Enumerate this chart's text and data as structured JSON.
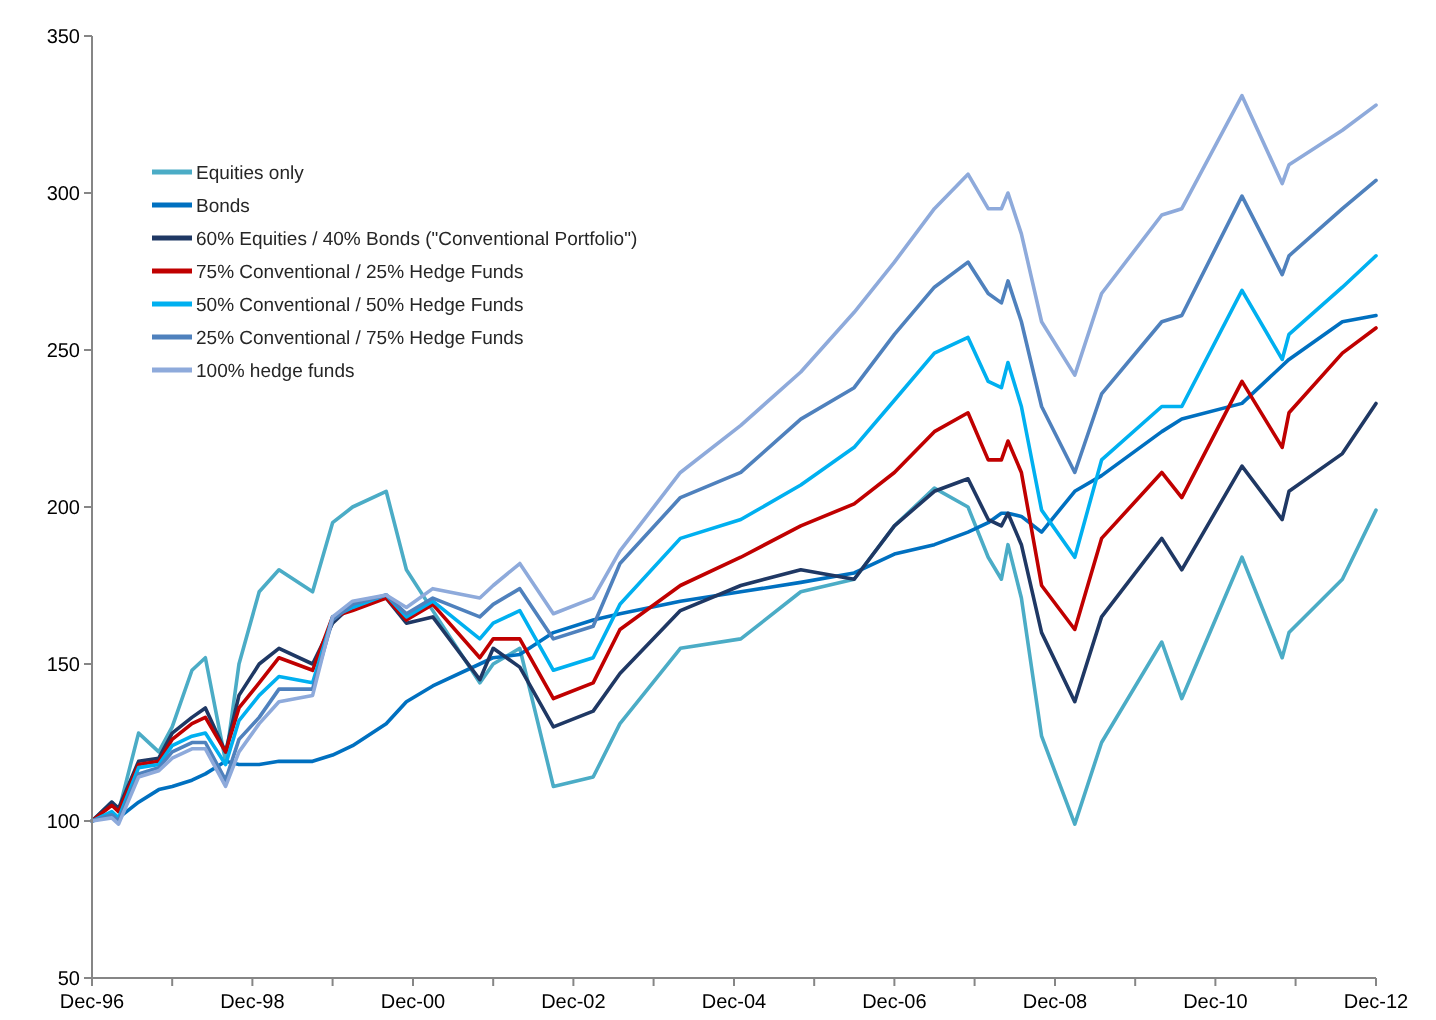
{
  "chart_data": {
    "type": "line",
    "x": [
      "1996-12",
      "1997-03",
      "1997-04",
      "1997-07",
      "1997-10",
      "1997-12",
      "1998-03",
      "1998-05",
      "1998-08",
      "1998-10",
      "1999-01",
      "1999-04",
      "1999-09",
      "1999-12",
      "2000-03",
      "2000-08",
      "2000-11",
      "2001-03",
      "2001-10",
      "2001-12",
      "2002-04",
      "2002-09",
      "2003-03",
      "2003-07",
      "2004-04",
      "2005-01",
      "2005-10",
      "2006-06",
      "2006-12",
      "2007-06",
      "2007-11",
      "2008-02",
      "2008-04",
      "2008-05",
      "2008-07",
      "2008-10",
      "2009-03",
      "2009-07",
      "2010-04",
      "2010-07",
      "2011-04",
      "2011-10",
      "2011-11",
      "2012-07",
      "2012-12"
    ],
    "series": [
      {
        "name": "Equities only",
        "color": "#4bacc6",
        "values": [
          100,
          106,
          103,
          128,
          122,
          130,
          148,
          152,
          119,
          150,
          173,
          180,
          173,
          195,
          200,
          205,
          180,
          167,
          144,
          150,
          155,
          111,
          114,
          131,
          155,
          158,
          173,
          177,
          194,
          206,
          200,
          184,
          177,
          188,
          171,
          127,
          99,
          125,
          157,
          139,
          184,
          152,
          160,
          177,
          199
        ]
      },
      {
        "name": "Bonds",
        "color": "#0070c0",
        "values": [
          100,
          102,
          101,
          106,
          110,
          111,
          113,
          115,
          119,
          118,
          118,
          119,
          119,
          121,
          124,
          131,
          138,
          143,
          150,
          152,
          153,
          160,
          164,
          166,
          170,
          173,
          176,
          179,
          185,
          188,
          192,
          195,
          198,
          198,
          197,
          192,
          205,
          210,
          224,
          228,
          233,
          245,
          247,
          259,
          261
        ]
      },
      {
        "name": "60% Equities / 40% Bonds (\"Conventional Portfolio\")",
        "color": "#1f3864",
        "values": [
          100,
          106,
          104,
          119,
          120,
          128,
          133,
          136,
          122,
          140,
          150,
          155,
          150,
          163,
          169,
          171,
          163,
          165,
          145,
          155,
          149,
          130,
          135,
          147,
          167,
          175,
          180,
          177,
          194,
          205,
          209,
          196,
          194,
          198,
          188,
          160,
          138,
          165,
          190,
          180,
          213,
          196,
          205,
          217,
          233
        ]
      },
      {
        "name": "75% Conventional / 25% Hedge Funds",
        "color": "#c00000",
        "values": [
          100,
          105,
          103,
          118,
          119,
          126,
          131,
          133,
          122,
          136,
          144,
          152,
          148,
          165,
          167,
          171,
          164,
          169,
          152,
          158,
          158,
          139,
          144,
          161,
          175,
          184,
          194,
          201,
          211,
          224,
          230,
          215,
          215,
          221,
          211,
          175,
          161,
          190,
          211,
          203,
          240,
          219,
          230,
          249,
          257
        ]
      },
      {
        "name": "50% Conventional / 50% Hedge Funds",
        "color": "#00b0f0",
        "values": [
          100,
          103,
          101,
          117,
          118,
          124,
          127,
          128,
          118,
          132,
          140,
          146,
          144,
          165,
          168,
          172,
          165,
          170,
          158,
          163,
          167,
          148,
          152,
          169,
          190,
          196,
          207,
          219,
          234,
          249,
          254,
          240,
          238,
          246,
          232,
          199,
          184,
          215,
          232,
          232,
          269,
          247,
          255,
          270,
          280
        ]
      },
      {
        "name": "25% Conventional / 75% Hedge Funds",
        "color": "#4f81bd",
        "values": [
          100,
          102,
          100,
          115,
          117,
          122,
          125,
          125,
          113,
          126,
          133,
          142,
          142,
          164,
          169,
          172,
          166,
          171,
          165,
          169,
          174,
          158,
          162,
          182,
          203,
          211,
          228,
          238,
          255,
          270,
          278,
          268,
          265,
          272,
          259,
          232,
          211,
          236,
          259,
          261,
          299,
          274,
          280,
          295,
          304
        ]
      },
      {
        "name": "100% hedge funds",
        "color": "#8eaadb",
        "values": [
          100,
          101,
          99,
          114,
          116,
          120,
          123,
          123,
          111,
          122,
          131,
          138,
          140,
          165,
          170,
          172,
          168,
          174,
          171,
          175,
          182,
          166,
          171,
          186,
          211,
          226,
          243,
          262,
          278,
          295,
          306,
          295,
          295,
          300,
          287,
          259,
          242,
          268,
          293,
          295,
          331,
          303,
          309,
          320,
          328
        ]
      }
    ],
    "xlim": [
      "1996-12",
      "2012-12"
    ],
    "xticks": [
      {
        "value": "1996-12",
        "label": "Dec-96"
      },
      {
        "value": "1997-12",
        "label": null
      },
      {
        "value": "1998-12",
        "label": "Dec-98"
      },
      {
        "value": "1999-12",
        "label": null
      },
      {
        "value": "2000-12",
        "label": "Dec-00"
      },
      {
        "value": "2001-12",
        "label": null
      },
      {
        "value": "2002-12",
        "label": "Dec-02"
      },
      {
        "value": "2003-12",
        "label": null
      },
      {
        "value": "2004-12",
        "label": "Dec-04"
      },
      {
        "value": "2005-12",
        "label": null
      },
      {
        "value": "2006-12",
        "label": "Dec-06"
      },
      {
        "value": "2007-12",
        "label": null
      },
      {
        "value": "2008-12",
        "label": "Dec-08"
      },
      {
        "value": "2009-12",
        "label": null
      },
      {
        "value": "2010-12",
        "label": "Dec-10"
      },
      {
        "value": "2011-12",
        "label": null
      },
      {
        "value": "2012-12",
        "label": "Dec-12"
      }
    ],
    "ylim": [
      50,
      350
    ],
    "yticks": [
      50,
      100,
      150,
      200,
      250,
      300,
      350
    ],
    "legend": "top left",
    "marker": "none",
    "line_style": "solid"
  }
}
